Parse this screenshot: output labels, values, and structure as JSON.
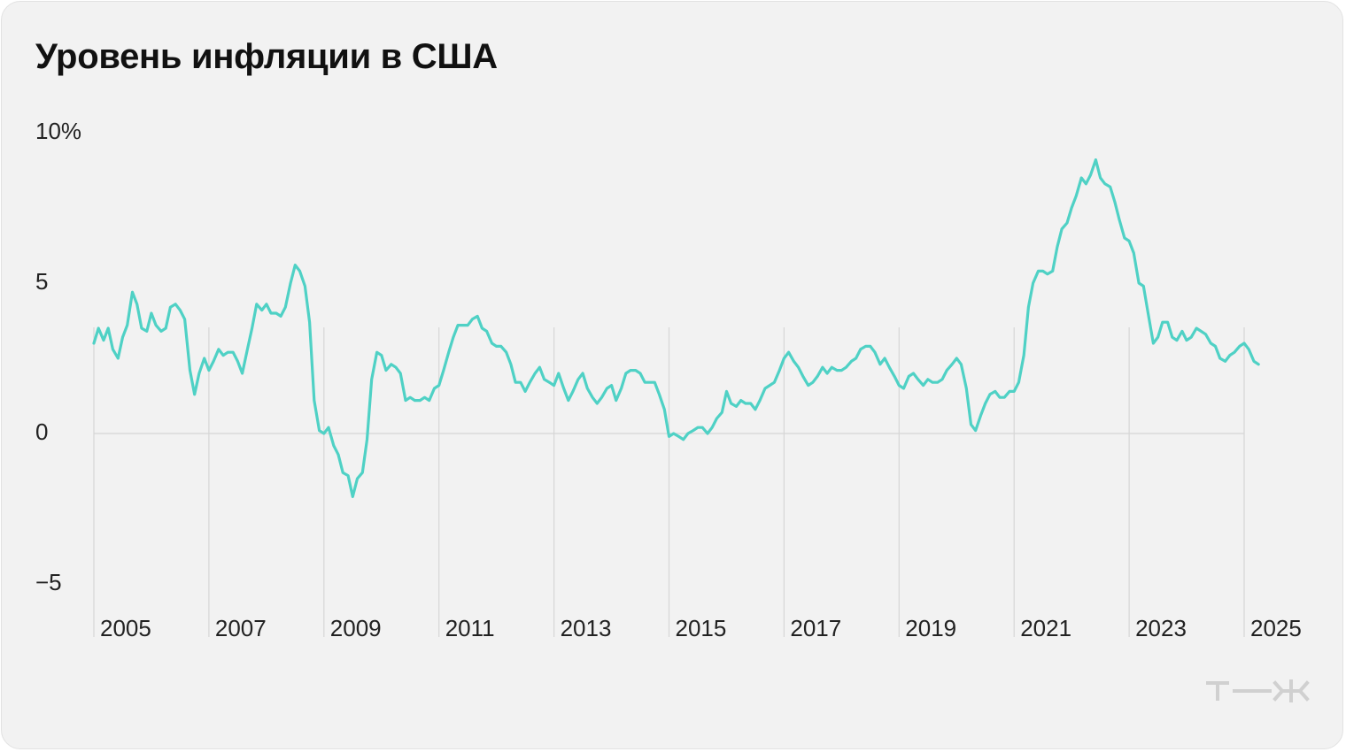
{
  "title": "Уровень инфляции в США",
  "colors": {
    "line": "#4fd1c5",
    "grid": "#d6d6d6",
    "background": "#f2f2f2",
    "logo": "#d0d0d0"
  },
  "logo_icon": "tzh-logo",
  "chart_data": {
    "type": "line",
    "title": "Уровень инфляции в США",
    "xlabel": "",
    "ylabel": "",
    "xlim": [
      2005,
      2025
    ],
    "ylim": [
      -5,
      10
    ],
    "y_ticks": [
      {
        "value": 10,
        "label": "10%"
      },
      {
        "value": 5,
        "label": "5"
      },
      {
        "value": 0,
        "label": "0"
      },
      {
        "value": -5,
        "label": "−5"
      }
    ],
    "x_ticks": [
      "2005",
      "2007",
      "2009",
      "2011",
      "2013",
      "2015",
      "2017",
      "2019",
      "2021",
      "2023",
      "2025"
    ],
    "x_tick_values": [
      2005,
      2007,
      2009,
      2011,
      2013,
      2015,
      2017,
      2019,
      2021,
      2023,
      2025
    ],
    "grid": true,
    "legend": "none",
    "series": [
      {
        "values": [
          [
            2005.0,
            3.0
          ],
          [
            2005.08,
            3.5
          ],
          [
            2005.17,
            3.1
          ],
          [
            2005.25,
            3.5
          ],
          [
            2005.33,
            2.8
          ],
          [
            2005.42,
            2.5
          ],
          [
            2005.5,
            3.2
          ],
          [
            2005.58,
            3.6
          ],
          [
            2005.67,
            4.7
          ],
          [
            2005.75,
            4.3
          ],
          [
            2005.83,
            3.5
          ],
          [
            2005.92,
            3.4
          ],
          [
            2006.0,
            4.0
          ],
          [
            2006.08,
            3.6
          ],
          [
            2006.17,
            3.4
          ],
          [
            2006.25,
            3.5
          ],
          [
            2006.33,
            4.2
          ],
          [
            2006.42,
            4.3
          ],
          [
            2006.5,
            4.1
          ],
          [
            2006.58,
            3.8
          ],
          [
            2006.67,
            2.1
          ],
          [
            2006.75,
            1.3
          ],
          [
            2006.83,
            2.0
          ],
          [
            2006.92,
            2.5
          ],
          [
            2007.0,
            2.1
          ],
          [
            2007.08,
            2.4
          ],
          [
            2007.17,
            2.8
          ],
          [
            2007.25,
            2.6
          ],
          [
            2007.33,
            2.7
          ],
          [
            2007.42,
            2.7
          ],
          [
            2007.5,
            2.4
          ],
          [
            2007.58,
            2.0
          ],
          [
            2007.67,
            2.8
          ],
          [
            2007.75,
            3.5
          ],
          [
            2007.83,
            4.3
          ],
          [
            2007.92,
            4.1
          ],
          [
            2008.0,
            4.3
          ],
          [
            2008.08,
            4.0
          ],
          [
            2008.17,
            4.0
          ],
          [
            2008.25,
            3.9
          ],
          [
            2008.33,
            4.2
          ],
          [
            2008.42,
            5.0
          ],
          [
            2008.5,
            5.6
          ],
          [
            2008.58,
            5.4
          ],
          [
            2008.67,
            4.9
          ],
          [
            2008.75,
            3.7
          ],
          [
            2008.83,
            1.1
          ],
          [
            2008.92,
            0.1
          ],
          [
            2009.0,
            0.0
          ],
          [
            2009.08,
            0.2
          ],
          [
            2009.17,
            -0.4
          ],
          [
            2009.25,
            -0.7
          ],
          [
            2009.33,
            -1.3
          ],
          [
            2009.42,
            -1.4
          ],
          [
            2009.5,
            -2.1
          ],
          [
            2009.58,
            -1.5
          ],
          [
            2009.67,
            -1.3
          ],
          [
            2009.75,
            -0.2
          ],
          [
            2009.83,
            1.8
          ],
          [
            2009.92,
            2.7
          ],
          [
            2010.0,
            2.6
          ],
          [
            2010.08,
            2.1
          ],
          [
            2010.17,
            2.3
          ],
          [
            2010.25,
            2.2
          ],
          [
            2010.33,
            2.0
          ],
          [
            2010.42,
            1.1
          ],
          [
            2010.5,
            1.2
          ],
          [
            2010.58,
            1.1
          ],
          [
            2010.67,
            1.1
          ],
          [
            2010.75,
            1.2
          ],
          [
            2010.83,
            1.1
          ],
          [
            2010.92,
            1.5
          ],
          [
            2011.0,
            1.6
          ],
          [
            2011.08,
            2.1
          ],
          [
            2011.17,
            2.7
          ],
          [
            2011.25,
            3.2
          ],
          [
            2011.33,
            3.6
          ],
          [
            2011.42,
            3.6
          ],
          [
            2011.5,
            3.6
          ],
          [
            2011.58,
            3.8
          ],
          [
            2011.67,
            3.9
          ],
          [
            2011.75,
            3.5
          ],
          [
            2011.83,
            3.4
          ],
          [
            2011.92,
            3.0
          ],
          [
            2012.0,
            2.9
          ],
          [
            2012.08,
            2.9
          ],
          [
            2012.17,
            2.7
          ],
          [
            2012.25,
            2.3
          ],
          [
            2012.33,
            1.7
          ],
          [
            2012.42,
            1.7
          ],
          [
            2012.5,
            1.4
          ],
          [
            2012.58,
            1.7
          ],
          [
            2012.67,
            2.0
          ],
          [
            2012.75,
            2.2
          ],
          [
            2012.83,
            1.8
          ],
          [
            2012.92,
            1.7
          ],
          [
            2013.0,
            1.6
          ],
          [
            2013.08,
            2.0
          ],
          [
            2013.17,
            1.5
          ],
          [
            2013.25,
            1.1
          ],
          [
            2013.33,
            1.4
          ],
          [
            2013.42,
            1.8
          ],
          [
            2013.5,
            2.0
          ],
          [
            2013.58,
            1.5
          ],
          [
            2013.67,
            1.2
          ],
          [
            2013.75,
            1.0
          ],
          [
            2013.83,
            1.2
          ],
          [
            2013.92,
            1.5
          ],
          [
            2014.0,
            1.6
          ],
          [
            2014.08,
            1.1
          ],
          [
            2014.17,
            1.5
          ],
          [
            2014.25,
            2.0
          ],
          [
            2014.33,
            2.1
          ],
          [
            2014.42,
            2.1
          ],
          [
            2014.5,
            2.0
          ],
          [
            2014.58,
            1.7
          ],
          [
            2014.67,
            1.7
          ],
          [
            2014.75,
            1.7
          ],
          [
            2014.83,
            1.3
          ],
          [
            2014.92,
            0.8
          ],
          [
            2015.0,
            -0.1
          ],
          [
            2015.08,
            0.0
          ],
          [
            2015.17,
            -0.1
          ],
          [
            2015.25,
            -0.2
          ],
          [
            2015.33,
            0.0
          ],
          [
            2015.42,
            0.1
          ],
          [
            2015.5,
            0.2
          ],
          [
            2015.58,
            0.2
          ],
          [
            2015.67,
            0.0
          ],
          [
            2015.75,
            0.2
          ],
          [
            2015.83,
            0.5
          ],
          [
            2015.92,
            0.7
          ],
          [
            2016.0,
            1.4
          ],
          [
            2016.08,
            1.0
          ],
          [
            2016.17,
            0.9
          ],
          [
            2016.25,
            1.1
          ],
          [
            2016.33,
            1.0
          ],
          [
            2016.42,
            1.0
          ],
          [
            2016.5,
            0.8
          ],
          [
            2016.58,
            1.1
          ],
          [
            2016.67,
            1.5
          ],
          [
            2016.75,
            1.6
          ],
          [
            2016.83,
            1.7
          ],
          [
            2016.92,
            2.1
          ],
          [
            2017.0,
            2.5
          ],
          [
            2017.08,
            2.7
          ],
          [
            2017.17,
            2.4
          ],
          [
            2017.25,
            2.2
          ],
          [
            2017.33,
            1.9
          ],
          [
            2017.42,
            1.6
          ],
          [
            2017.5,
            1.7
          ],
          [
            2017.58,
            1.9
          ],
          [
            2017.67,
            2.2
          ],
          [
            2017.75,
            2.0
          ],
          [
            2017.83,
            2.2
          ],
          [
            2017.92,
            2.1
          ],
          [
            2018.0,
            2.1
          ],
          [
            2018.08,
            2.2
          ],
          [
            2018.17,
            2.4
          ],
          [
            2018.25,
            2.5
          ],
          [
            2018.33,
            2.8
          ],
          [
            2018.42,
            2.9
          ],
          [
            2018.5,
            2.9
          ],
          [
            2018.58,
            2.7
          ],
          [
            2018.67,
            2.3
          ],
          [
            2018.75,
            2.5
          ],
          [
            2018.83,
            2.2
          ],
          [
            2018.92,
            1.9
          ],
          [
            2019.0,
            1.6
          ],
          [
            2019.08,
            1.5
          ],
          [
            2019.17,
            1.9
          ],
          [
            2019.25,
            2.0
          ],
          [
            2019.33,
            1.8
          ],
          [
            2019.42,
            1.6
          ],
          [
            2019.5,
            1.8
          ],
          [
            2019.58,
            1.7
          ],
          [
            2019.67,
            1.7
          ],
          [
            2019.75,
            1.8
          ],
          [
            2019.83,
            2.1
          ],
          [
            2019.92,
            2.3
          ],
          [
            2020.0,
            2.5
          ],
          [
            2020.08,
            2.3
          ],
          [
            2020.17,
            1.5
          ],
          [
            2020.25,
            0.3
          ],
          [
            2020.33,
            0.1
          ],
          [
            2020.42,
            0.6
          ],
          [
            2020.5,
            1.0
          ],
          [
            2020.58,
            1.3
          ],
          [
            2020.67,
            1.4
          ],
          [
            2020.75,
            1.2
          ],
          [
            2020.83,
            1.2
          ],
          [
            2020.92,
            1.4
          ],
          [
            2021.0,
            1.4
          ],
          [
            2021.08,
            1.7
          ],
          [
            2021.17,
            2.6
          ],
          [
            2021.25,
            4.2
          ],
          [
            2021.33,
            5.0
          ],
          [
            2021.42,
            5.4
          ],
          [
            2021.5,
            5.4
          ],
          [
            2021.58,
            5.3
          ],
          [
            2021.67,
            5.4
          ],
          [
            2021.75,
            6.2
          ],
          [
            2021.83,
            6.8
          ],
          [
            2021.92,
            7.0
          ],
          [
            2022.0,
            7.5
          ],
          [
            2022.08,
            7.9
          ],
          [
            2022.17,
            8.5
          ],
          [
            2022.25,
            8.3
          ],
          [
            2022.33,
            8.6
          ],
          [
            2022.42,
            9.1
          ],
          [
            2022.5,
            8.5
          ],
          [
            2022.58,
            8.3
          ],
          [
            2022.67,
            8.2
          ],
          [
            2022.75,
            7.7
          ],
          [
            2022.83,
            7.1
          ],
          [
            2022.92,
            6.5
          ],
          [
            2023.0,
            6.4
          ],
          [
            2023.08,
            6.0
          ],
          [
            2023.17,
            5.0
          ],
          [
            2023.25,
            4.9
          ],
          [
            2023.33,
            4.0
          ],
          [
            2023.42,
            3.0
          ],
          [
            2023.5,
            3.2
          ],
          [
            2023.58,
            3.7
          ],
          [
            2023.67,
            3.7
          ],
          [
            2023.75,
            3.2
          ],
          [
            2023.83,
            3.1
          ],
          [
            2023.92,
            3.4
          ],
          [
            2024.0,
            3.1
          ],
          [
            2024.08,
            3.2
          ],
          [
            2024.17,
            3.5
          ],
          [
            2024.25,
            3.4
          ],
          [
            2024.33,
            3.3
          ],
          [
            2024.42,
            3.0
          ],
          [
            2024.5,
            2.9
          ],
          [
            2024.58,
            2.5
          ],
          [
            2024.67,
            2.4
          ],
          [
            2024.75,
            2.6
          ],
          [
            2024.83,
            2.7
          ],
          [
            2024.92,
            2.9
          ],
          [
            2025.0,
            3.0
          ],
          [
            2025.08,
            2.8
          ],
          [
            2025.17,
            2.4
          ],
          [
            2025.25,
            2.3
          ]
        ]
      }
    ]
  }
}
